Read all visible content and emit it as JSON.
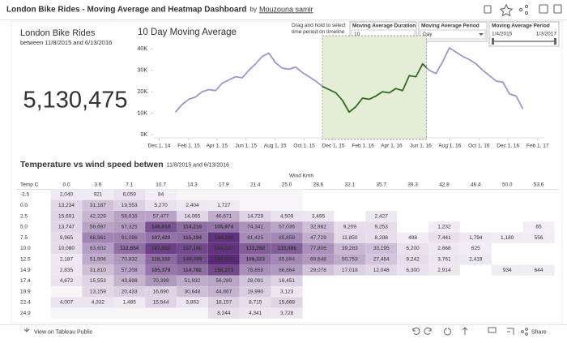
{
  "header": {
    "title": "London Bike Rides - Moving Average and Heatmap Dashboard",
    "by": "by",
    "author": "Mouzouna samir"
  },
  "kpi": {
    "title": "London Bike Rides",
    "subtitle": "between 11/8/2015 and 6/13/2016",
    "value": "5,130,475"
  },
  "chart_data": {
    "type": "line",
    "title": "10 Day Moving Average",
    "annotation": "Drag and hold to select time period on timeline",
    "x": [
      "2015-01-04",
      "2015-01-18",
      "2015-02-01",
      "2015-02-15",
      "2015-03-01",
      "2015-03-15",
      "2015-03-29",
      "2015-04-12",
      "2015-04-26",
      "2015-05-10",
      "2015-05-24",
      "2015-06-07",
      "2015-06-21",
      "2015-07-05",
      "2015-07-19",
      "2015-08-02",
      "2015-08-16",
      "2015-08-30",
      "2015-09-13",
      "2015-09-27",
      "2015-10-11",
      "2015-10-25",
      "2015-11-08",
      "2015-11-22",
      "2015-12-06",
      "2015-12-20",
      "2016-01-03",
      "2016-01-17",
      "2016-01-31",
      "2016-02-14",
      "2016-02-28",
      "2016-03-13",
      "2016-03-27",
      "2016-04-10",
      "2016-04-24",
      "2016-05-08",
      "2016-05-22",
      "2016-06-05",
      "2016-06-19",
      "2016-07-03",
      "2016-07-17",
      "2016-07-31",
      "2016-08-14",
      "2016-08-28",
      "2016-09-11",
      "2016-09-25",
      "2016-10-09",
      "2016-10-23",
      "2016-11-06",
      "2016-11-20",
      "2016-12-04",
      "2016-12-18",
      "2017-01-01"
    ],
    "values": [
      10500,
      14000,
      16500,
      17500,
      20000,
      21000,
      20500,
      24000,
      25500,
      27000,
      26500,
      30000,
      33000,
      36500,
      38000,
      33500,
      31000,
      30500,
      31500,
      29000,
      27000,
      25000,
      22500,
      21000,
      19500,
      16000,
      10500,
      13000,
      17000,
      16500,
      18000,
      20000,
      19500,
      21500,
      20500,
      27500,
      27000,
      33000,
      30000,
      28500,
      34000,
      40500,
      38500,
      36500,
      35000,
      33000,
      30000,
      27500,
      25000,
      24500,
      19000,
      18000,
      12000
    ],
    "color": "#a193cf",
    "selection": [
      "2015-11-08",
      "2016-06-13"
    ],
    "selection_color": "#2e6b1f",
    "xlim": [
      "2014-11-20",
      "2017-02-15"
    ],
    "xticks": [
      {
        "value": "2014-12-01",
        "label": "Dec 1, 14"
      },
      {
        "value": "2015-02-01",
        "label": "Feb 1, 15"
      },
      {
        "value": "2015-04-01",
        "label": "Apr 1, 15"
      },
      {
        "value": "2015-06-01",
        "label": "Jun 1, 15"
      },
      {
        "value": "2015-08-01",
        "label": "Aug 1, 15"
      },
      {
        "value": "2015-10-01",
        "label": "Oct 1, 15"
      },
      {
        "value": "2015-12-01",
        "label": "Dec 1, 15"
      },
      {
        "value": "2016-02-01",
        "label": "Feb 1, 16"
      },
      {
        "value": "2016-04-01",
        "label": "Apr 1, 16"
      },
      {
        "value": "2016-06-01",
        "label": "Jun 1, 16"
      },
      {
        "value": "2016-08-01",
        "label": "Aug 1, 16"
      },
      {
        "value": "2016-10-01",
        "label": "Oct 1, 16"
      },
      {
        "value": "2016-12-01",
        "label": "Dec 1, 16"
      },
      {
        "value": "2017-02-01",
        "label": "Feb 1, 17"
      }
    ],
    "ylim": [
      0,
      42000
    ],
    "yticks": [
      {
        "value": 0,
        "label": "0K"
      },
      {
        "value": 10000,
        "label": "10K"
      },
      {
        "value": 20000,
        "label": "20K"
      },
      {
        "value": 30000,
        "label": "30K"
      },
      {
        "value": 40000,
        "label": "40K"
      }
    ],
    "grid": false
  },
  "controls": [
    {
      "label": "Moving Average Duration",
      "value": "10"
    },
    {
      "label": "Moving Average Period",
      "value": "Day"
    },
    {
      "label": "Moving Average Period",
      "range": [
        "1/4/2015",
        "1/3/2017"
      ]
    }
  ],
  "heatmap": {
    "title": "Temperature vs wind speed betwen",
    "subtitle": "11/8/2015 and 6/13/2016",
    "column_title": "Wind Kmh",
    "row_title": "Temp C",
    "color_low": "#f3eef6",
    "color_high": "#5a2a78",
    "columns": [
      "0.0",
      "3.6",
      "7.1",
      "10.7",
      "14.3",
      "17.9",
      "21.4",
      "25.0",
      "28.6",
      "32.1",
      "35.7",
      "39.3",
      "42.8",
      "46.4",
      "50.0",
      "53.6"
    ],
    "rows": [
      {
        "label": "-2.5",
        "cells": [
          "2,040",
          "921",
          "6,059",
          "84",
          null,
          null,
          null,
          null,
          null,
          null,
          null,
          null,
          null,
          null,
          null,
          null
        ]
      },
      {
        "label": "0.0",
        "cells": [
          "13,234",
          "31,187",
          "19,553",
          "5,270",
          "2,404",
          "1,727",
          null,
          null,
          null,
          null,
          null,
          null,
          null,
          null,
          null,
          null
        ]
      },
      {
        "label": "2.5",
        "cells": [
          "15,691",
          "42,229",
          "58,616",
          "57,477",
          "14,065",
          "46,671",
          "14,729",
          "4,509",
          "3,495",
          null,
          "2,427",
          null,
          null,
          null,
          null,
          null
        ]
      },
      {
        "label": "5.0",
        "cells": [
          "13,747",
          "59,697",
          "67,325",
          "146,610",
          "114,210",
          "105,974",
          "74,341",
          "57,036",
          "32,982",
          "9,209",
          "9,253",
          null,
          "1,232",
          null,
          null,
          "65"
        ]
      },
      {
        "label": "7.5",
        "cells": [
          "9,965",
          "88,961",
          "91,096",
          "107,420",
          "115,194",
          "184,309",
          "81,425",
          "85,859",
          "47,729",
          "11,850",
          "8,288",
          "498",
          "7,441",
          "1,794",
          "1,180",
          "556"
        ]
      },
      {
        "label": "10.0",
        "cells": [
          "10,080",
          "63,602",
          "112,654",
          "167,652",
          "157,140",
          "184,127",
          "133,268",
          "133,086",
          "77,806",
          "39,283",
          "33,195",
          "6,200",
          "2,668",
          "625",
          null,
          null
        ]
      },
      {
        "label": "12.5",
        "cells": [
          "2,187",
          "51,906",
          "70,832",
          "118,333",
          "149,099",
          "194,613",
          "108,323",
          "85,894",
          "69,648",
          "50,753",
          "27,464",
          "9,242",
          "3,761",
          "2,419",
          null,
          null
        ]
      },
      {
        "label": "14.9",
        "cells": [
          "2,835",
          "31,810",
          "57,208",
          "105,379",
          "114,782",
          "156,373",
          "78,858",
          "66,864",
          "29,078",
          "17,018",
          "12,048",
          "6,300",
          "2,914",
          null,
          "934",
          "644"
        ]
      },
      {
        "label": "17.4",
        "cells": [
          "4,672",
          "15,553",
          "43,698",
          "70,399",
          "51,932",
          "56,289",
          "28,091",
          "16,451",
          null,
          null,
          null,
          null,
          null,
          null,
          null,
          null
        ]
      },
      {
        "label": "19.9",
        "cells": [
          null,
          "13,159",
          "20,433",
          "16,690",
          "30,648",
          "44,667",
          "19,990",
          "3,123",
          null,
          null,
          null,
          null,
          null,
          null,
          null,
          null
        ]
      },
      {
        "label": "22.4",
        "cells": [
          "4,007",
          "4,332",
          "1,485",
          "15,544",
          "3,863",
          "18,157",
          "8,715",
          "15,688",
          null,
          null,
          null,
          null,
          null,
          null,
          null,
          null
        ]
      },
      {
        "label": "24.9",
        "cells": [
          null,
          null,
          null,
          null,
          null,
          "8,244",
          "4,341",
          "3,728",
          null,
          null,
          null,
          null,
          null,
          null,
          null,
          null
        ]
      }
    ]
  },
  "footer": {
    "link": "View on Tableau Public",
    "share": "Share"
  }
}
